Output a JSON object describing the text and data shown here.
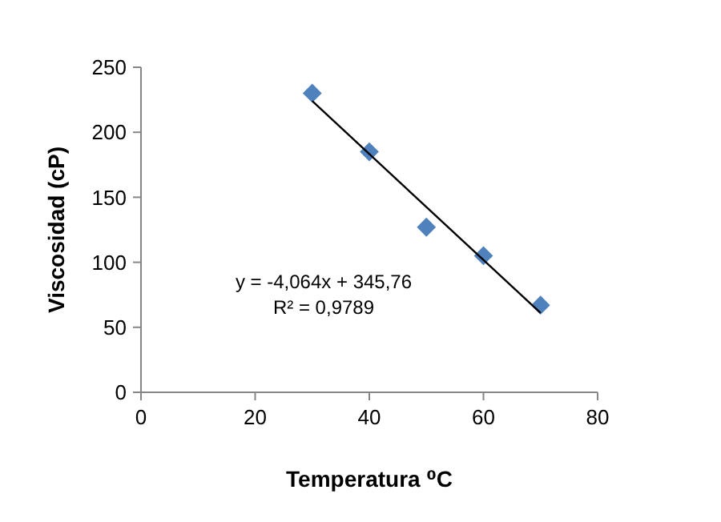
{
  "chart_data": {
    "type": "scatter",
    "xlabel": "Temperatura ⁰C",
    "ylabel": "Viscosidad (cP)",
    "xlim": [
      0,
      80
    ],
    "xticks": [
      0,
      20,
      40,
      60,
      80
    ],
    "ylim": [
      0,
      250
    ],
    "yticks": [
      0,
      50,
      100,
      150,
      200,
      250
    ],
    "grid": false,
    "marker": "diamond",
    "series": [
      {
        "color": "#4f81bd",
        "x": [
          30,
          40,
          50,
          60,
          70
        ],
        "values": [
          230,
          185,
          127,
          105,
          67
        ]
      },
      {
        "type": "line",
        "color": "#000000",
        "x": [
          30,
          70
        ],
        "values": [
          224,
          61
        ],
        "marker": "none",
        "line_style": "solid"
      }
    ],
    "annotations": [
      "y = -4,064x + 345,76",
      "R² = 0,9789"
    ]
  }
}
